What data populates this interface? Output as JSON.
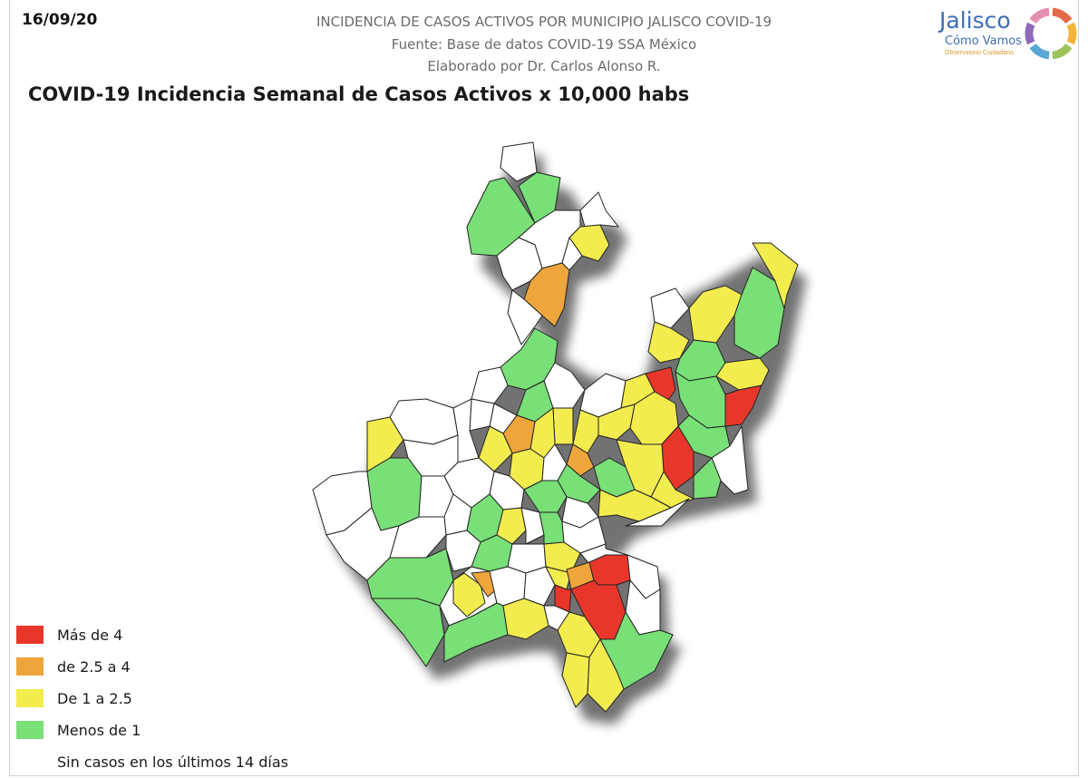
{
  "date": "16/09/20",
  "header": {
    "line1": "INCIDENCIA DE CASOS ACTIVOS POR MUNICIPIO JALISCO COVID-19",
    "line2": "Fuente: Base de datos COVID-19 SSA México",
    "line3": "Elaborado por Dr. Carlos Alonso R."
  },
  "title": "COVID-19 Incidencia Semanal de Casos Activos x 10,000 habs",
  "logo": {
    "name": "Jalisco",
    "subtitle": "Cómo Vamos",
    "tagline": "Observatorio Ciudadano",
    "ring_colors": [
      "#e26a4a",
      "#f2b53a",
      "#9cc45a",
      "#5aa8d8",
      "#8b6ab8",
      "#e58fb0"
    ]
  },
  "colors": {
    "red": "#e8372a",
    "orange": "#eea53b",
    "yellow": "#f3ec4f",
    "green": "#79df77",
    "white": "#ffffff",
    "border": "#222222"
  },
  "legend": [
    {
      "label": "Más de 4",
      "color": "#e8372a"
    },
    {
      "label": "de 2.5 a 4",
      "color": "#eea53b"
    },
    {
      "label": "De 1 a 2.5",
      "color": "#f3ec4f"
    },
    {
      "label": "Menos de 1",
      "color": "#79df77"
    },
    {
      "label": "Sin casos en los últimos 14 días",
      "color": "#ffffff"
    }
  ]
}
